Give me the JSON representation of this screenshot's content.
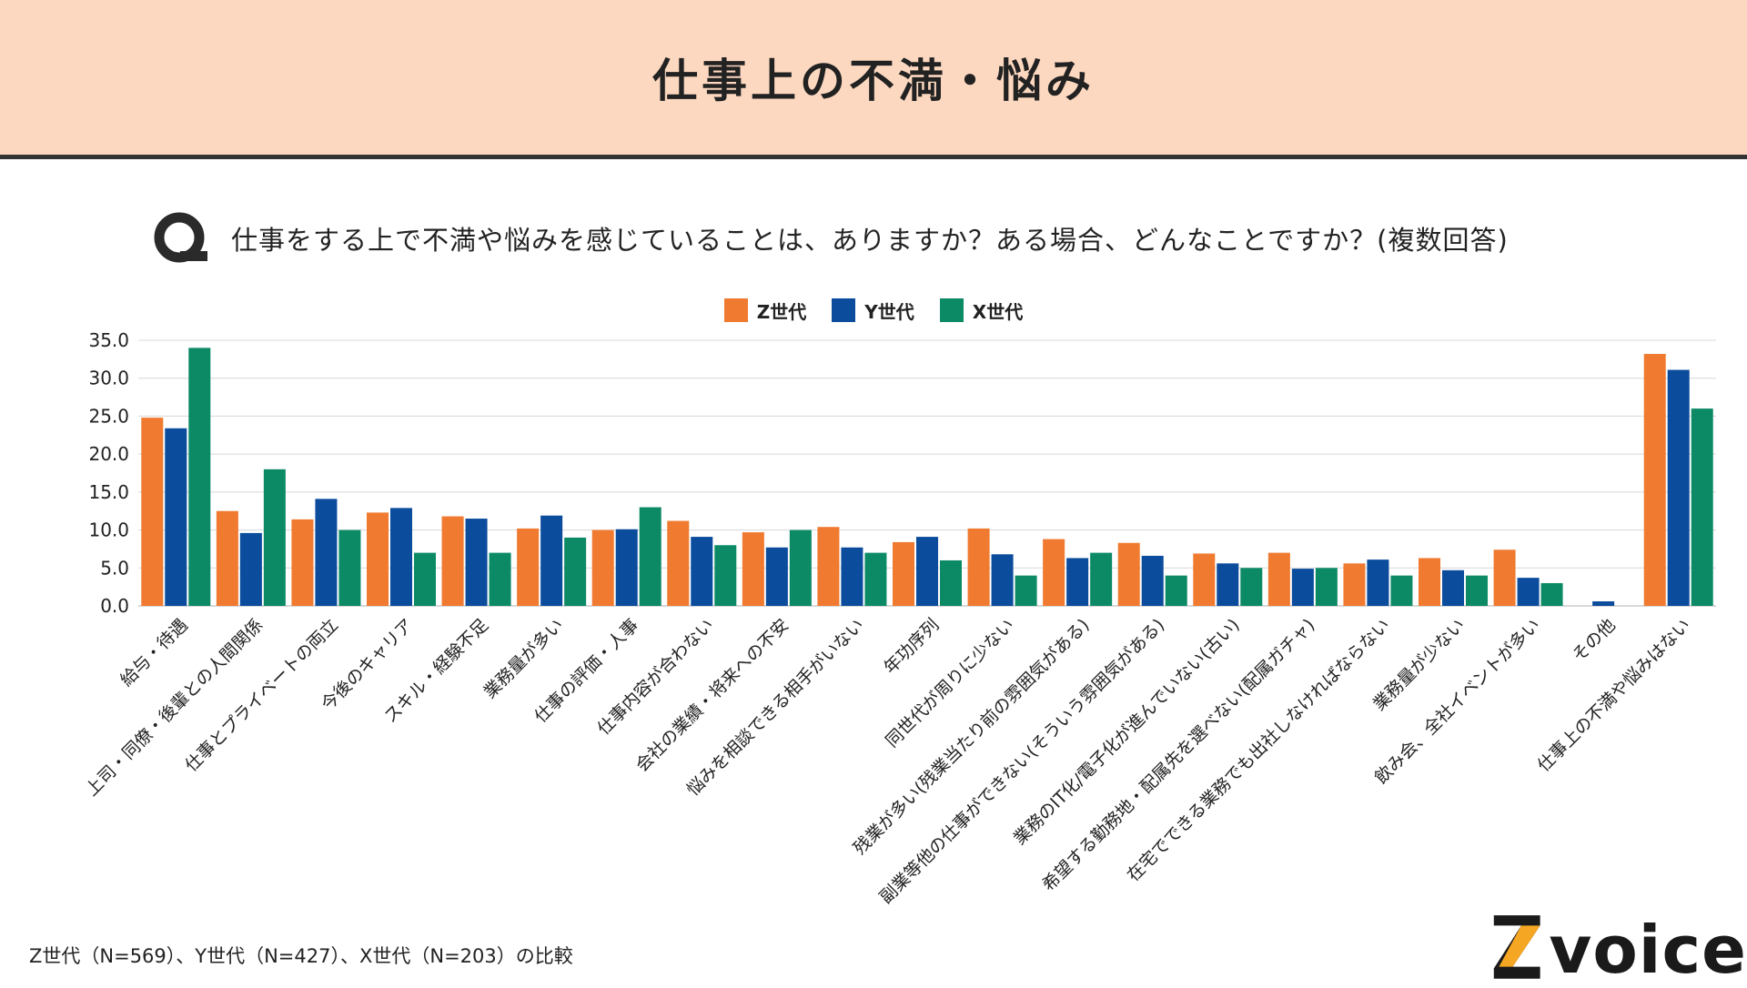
{
  "header": {
    "title": "仕事上の不満・悩み"
  },
  "question": {
    "mark": "Q",
    "text": "仕事をする上で不満や悩みを感じていることは、ありますか？ある場合、どんなことですか？(複数回答)"
  },
  "footnote": "Z世代（N=569）、Y世代（N=427）、X世代（N=203）の比較",
  "logo": {
    "letter": "Z",
    "text": "voice"
  },
  "colors": {
    "z": "#f07a30",
    "y": "#0b4c9c",
    "x": "#0c8a66",
    "grid": "#d8d8d8",
    "header_bg": "#fdd8c0"
  },
  "chart_data": {
    "type": "bar",
    "title": "",
    "xlabel": "",
    "ylabel": "",
    "ylim": [
      0,
      35
    ],
    "yticks": [
      "0.0",
      "5.0",
      "10.0",
      "15.0",
      "20.0",
      "25.0",
      "30.0",
      "35.0"
    ],
    "grid": true,
    "legend_position": "top-center",
    "categories": [
      "給与・待遇",
      "上司・同僚・後輩との人間関係",
      "仕事とプライベートの両立",
      "今後のキャリア",
      "スキル・経験不足",
      "業務量が多い",
      "仕事の評価・人事",
      "仕事内容が合わない",
      "会社の業績・将来への不安",
      "悩みを相談できる相手がいない",
      "年功序列",
      "同世代が周りに少ない",
      "残業が多い(残業当たり前の雰囲気がある)",
      "副業等他の仕事ができない(そういう雰囲気がある)",
      "業務のIT化/電子化が進んでいない(古い)",
      "希望する勤務地・配属先を選べない(配属ガチャ)",
      "在宅でできる業務でも出社しなければならない",
      "業務量が少ない",
      "飲み会、全社イベントが多い",
      "その他",
      "仕事上の不満や悩みはない"
    ],
    "series": [
      {
        "name": "Z世代",
        "color": "#f07a30",
        "values": [
          24.8,
          12.5,
          11.4,
          12.3,
          11.8,
          10.2,
          10.0,
          11.2,
          9.7,
          10.4,
          8.4,
          10.2,
          8.8,
          8.3,
          6.9,
          7.0,
          5.6,
          6.3,
          7.4,
          0.0,
          33.2
        ]
      },
      {
        "name": "Y世代",
        "color": "#0b4c9c",
        "values": [
          23.4,
          9.6,
          14.1,
          12.9,
          11.5,
          11.9,
          10.1,
          9.1,
          7.7,
          7.7,
          9.1,
          6.8,
          6.3,
          6.6,
          5.6,
          4.9,
          6.1,
          4.7,
          3.7,
          0.6,
          31.1
        ]
      },
      {
        "name": "X世代",
        "color": "#0c8a66",
        "values": [
          34.0,
          18.0,
          10.0,
          7.0,
          7.0,
          9.0,
          13.0,
          8.0,
          10.0,
          7.0,
          6.0,
          4.0,
          7.0,
          4.0,
          5.0,
          5.0,
          4.0,
          4.0,
          3.0,
          0.0,
          26.0
        ]
      }
    ]
  }
}
